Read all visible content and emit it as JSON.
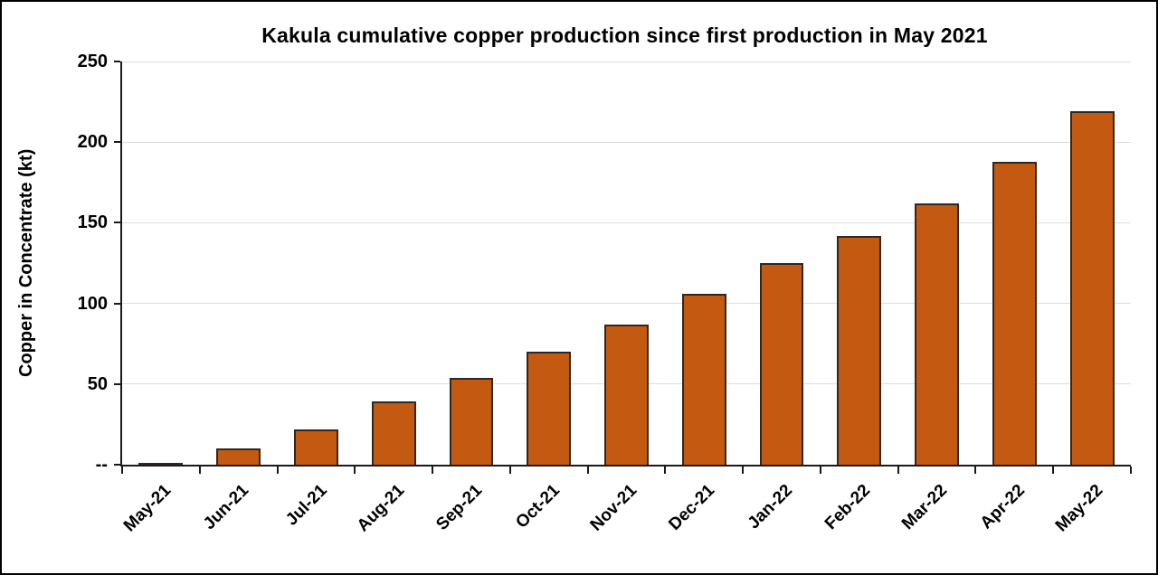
{
  "chart_data": {
    "type": "bar",
    "title": "Kakula cumulative copper production since first production in May 2021",
    "xlabel": "",
    "ylabel": "Copper in Concentrate (kt)",
    "categories": [
      "May-21",
      "Jun-21",
      "Jul-21",
      "Aug-21",
      "Sep-21",
      "Oct-21",
      "Nov-21",
      "Dec-21",
      "Jan-22",
      "Feb-22",
      "Mar-22",
      "Apr-22",
      "May-22"
    ],
    "values": [
      1,
      10,
      22,
      39,
      54,
      70,
      87,
      106,
      125,
      142,
      162,
      188,
      219
    ],
    "ylim": [
      0,
      250
    ],
    "yticks": [
      {
        "value": 0,
        "label": "--"
      },
      {
        "value": 50,
        "label": "50"
      },
      {
        "value": 100,
        "label": "100"
      },
      {
        "value": 150,
        "label": "150"
      },
      {
        "value": 200,
        "label": "200"
      },
      {
        "value": 250,
        "label": "250"
      }
    ],
    "grid": true,
    "legend": false,
    "colors": {
      "bar_fill": "#C45A11",
      "bar_border": "#2F2723",
      "gridline": "#DEDEDE",
      "axis": "#1a1a1a",
      "text": "#000000"
    }
  }
}
